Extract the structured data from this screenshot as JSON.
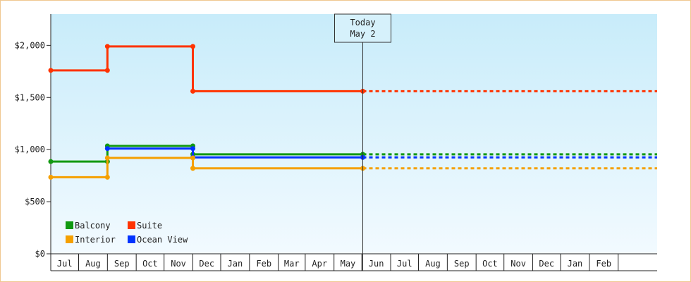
{
  "chart_data": {
    "type": "line",
    "step": true,
    "yaxis": {
      "ticks": [
        0,
        500,
        1000,
        1500,
        2000
      ],
      "tick_labels": [
        "$0",
        "$500",
        "$1,000",
        "$1,500",
        "$2,000"
      ],
      "ylim": [
        0,
        2300
      ]
    },
    "xaxis": {
      "months": [
        "Jul",
        "Aug",
        "Sep",
        "Oct",
        "Nov",
        "Dec",
        "Jan",
        "Feb",
        "Mar",
        "Apr",
        "May",
        "Jun",
        "Jul",
        "Aug",
        "Sep",
        "Oct",
        "Nov",
        "Dec",
        "Jan",
        "Feb"
      ],
      "range": [
        "2023-06-01",
        "2025-03-15"
      ]
    },
    "today": {
      "label_line1": "Today",
      "label_line2": "May 2",
      "date": "2024-05-02"
    },
    "series": [
      {
        "name": "Suite",
        "color": "#ff3300",
        "points": [
          [
            "2023-06-01",
            1760
          ],
          [
            "2023-08-01",
            1760
          ],
          [
            "2023-08-01",
            1990
          ],
          [
            "2023-11-01",
            1990
          ],
          [
            "2023-11-01",
            1560
          ],
          [
            "2024-05-02",
            1560
          ]
        ],
        "projection": 1560
      },
      {
        "name": "Balcony",
        "color": "#119911",
        "points": [
          [
            "2023-06-01",
            885
          ],
          [
            "2023-08-01",
            885
          ],
          [
            "2023-08-01",
            1035
          ],
          [
            "2023-11-01",
            1035
          ],
          [
            "2023-11-01",
            955
          ],
          [
            "2024-05-02",
            955
          ]
        ],
        "projection": 955
      },
      {
        "name": "Ocean View",
        "color": "#0033ff",
        "points": [
          [
            "2023-08-01",
            1010
          ],
          [
            "2023-11-01",
            1010
          ],
          [
            "2023-11-01",
            925
          ],
          [
            "2024-05-02",
            925
          ]
        ],
        "projection": 925
      },
      {
        "name": "Interior",
        "color": "#f5a000",
        "points": [
          [
            "2023-06-01",
            735
          ],
          [
            "2023-08-01",
            735
          ],
          [
            "2023-08-01",
            920
          ],
          [
            "2023-11-01",
            920
          ],
          [
            "2023-11-01",
            820
          ],
          [
            "2024-05-02",
            820
          ]
        ],
        "projection": 820
      }
    ],
    "legend": [
      {
        "name": "Balcony",
        "color": "#119911"
      },
      {
        "name": "Suite",
        "color": "#ff3300"
      },
      {
        "name": "Interior",
        "color": "#f5a000"
      },
      {
        "name": "Ocean View",
        "color": "#0033ff"
      }
    ],
    "legend_position": "bottom-left",
    "background_gradient": [
      "#c8ecfa",
      "#f2faff"
    ]
  }
}
